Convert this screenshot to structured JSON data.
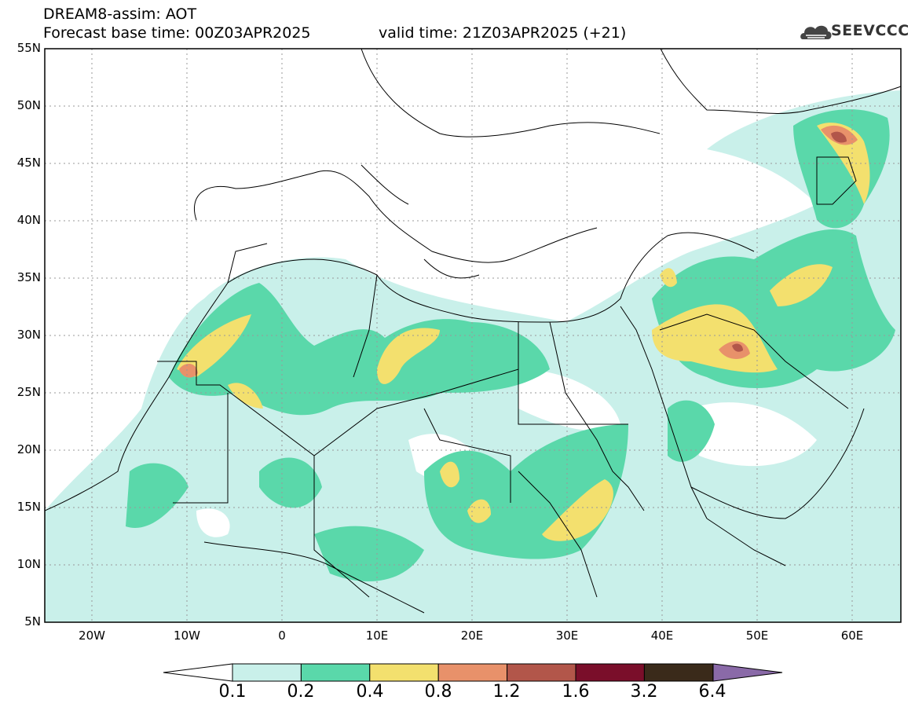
{
  "header": {
    "title": "DREAM8-assim: AOT",
    "base_time": "Forecast base time: 00Z03APR2025",
    "valid_time": "valid time: 21Z03APR2025 (+21)"
  },
  "logo": {
    "text": "SEEVCCC",
    "icon": "cloud-logo-icon"
  },
  "map": {
    "lat_labels": [
      "55N",
      "50N",
      "45N",
      "40N",
      "35N",
      "30N",
      "25N",
      "20N",
      "15N",
      "10N",
      "5N"
    ],
    "lon_labels": [
      "20W",
      "10W",
      "0",
      "10E",
      "20E",
      "30E",
      "40E",
      "50E",
      "60E"
    ]
  },
  "colorbar": {
    "labels": [
      "0.1",
      "0.2",
      "0.4",
      "0.8",
      "1.2",
      "1.6",
      "3.2",
      "6.4"
    ],
    "colors": [
      "#c9f0ea",
      "#5ad8aa",
      "#f3e06e",
      "#e8916a",
      "#b2564a",
      "#7a0e2a",
      "#3a2a1a",
      "#8a6aa8"
    ]
  }
}
